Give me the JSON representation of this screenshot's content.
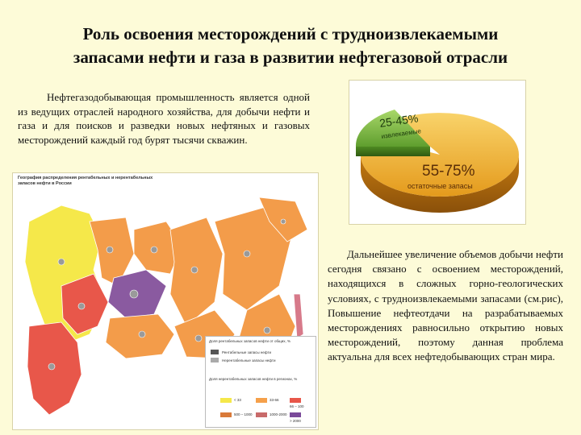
{
  "title": {
    "line1": "Роль  освоения  месторождений с трудноизвлекаемыми",
    "line2": "запасами нефти и газа в развитии нефтегазовой отрасли"
  },
  "paragraph1": "Нефтегазодобывающая промышленность является одной из ведущих отраслей народного хозяйства, для добычи нефти и газа и для поисков и разведки новых нефтяных и газовых месторождений каждый год бурят тысячи скважин.",
  "paragraph2": "Дальнейшее увеличение объемов добычи нефти сегодня связано с освоением месторождений, находящихся в сложных горно-геологических условиях, с трудноизвлекаемыми запасами (см.рис), Повышение нефтеотдачи на разрабатываемых месторождениях равносильно открытию новых месторождений, поэтому данная проблема актуальна для всех нефтедобывающих стран мира.",
  "pie": {
    "slices": [
      {
        "value_label": "25-45%",
        "name": "извлекаемые",
        "share": 0.35,
        "color": "#7ab648"
      },
      {
        "value_label": "55-75%",
        "name": "остаточные запасы",
        "share": 0.65,
        "color": "#f2b933"
      }
    ]
  },
  "map": {
    "title_line1": "География распределения рентабельных и нерентабельных",
    "title_line2": "запасов нефти в России",
    "legend_heading": "Доля рентабельных запасов нефти от общих, %",
    "legend_items": [
      "Рентабельные запасы нефти",
      "Нерентабельные запасы нефти"
    ],
    "scale_heading": "Доля нерентабельных запасов нефти в регионах, %",
    "scale": [
      {
        "label": "< 33",
        "color": "#f5e84a"
      },
      {
        "label": "33-66",
        "color": "#f5a04a"
      },
      {
        "label": "66 – 100",
        "color": "#e8574a"
      },
      {
        "label": "500 – 1000",
        "color": "#d97a3a"
      },
      {
        "label": "1000-2000",
        "color": "#c86a6a"
      },
      {
        "label": "> 2000",
        "color": "#7a4a9a"
      }
    ],
    "colors": {
      "yellow": "#f5e84a",
      "orange": "#f39c4a",
      "red": "#e8574a",
      "purple": "#8a5aa0",
      "pink": "#d77a8a"
    }
  }
}
